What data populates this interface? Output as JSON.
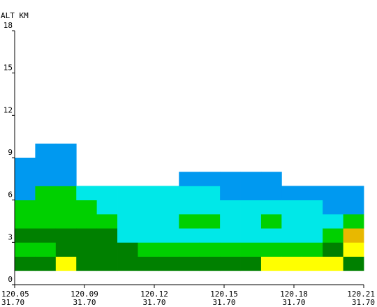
{
  "chart_data": {
    "type": "heatmap",
    "title": "",
    "ylabel": "ALT KM",
    "xlabel": "",
    "ylim": [
      0,
      18
    ],
    "y_ticks": [
      "0",
      "3",
      "6",
      "9",
      "12",
      "15",
      "18"
    ],
    "x_ticks": [
      {
        "lon": "120.05",
        "lat": "31.70"
      },
      {
        "lon": "120.09",
        "lat": "31.70"
      },
      {
        "lon": "120.12",
        "lat": "31.70"
      },
      {
        "lon": "120.15",
        "lat": "31.70"
      },
      {
        "lon": "120.18",
        "lat": "31.70"
      },
      {
        "lon": "120.21",
        "lat": "31.70"
      }
    ],
    "columns": 17,
    "row_height_km": 1,
    "legend": [],
    "cells": [
      {
        "col": 0,
        "y0": 1,
        "y1": 2,
        "color": "#008000"
      },
      {
        "col": 0,
        "y0": 2,
        "y1": 3,
        "color": "#00d000"
      },
      {
        "col": 0,
        "y0": 3,
        "y1": 4,
        "color": "#008000"
      },
      {
        "col": 0,
        "y0": 4,
        "y1": 6,
        "color": "#00d000"
      },
      {
        "col": 0,
        "y0": 6,
        "y1": 9,
        "color": "#0099f0"
      },
      {
        "col": 1,
        "y0": 1,
        "y1": 2,
        "color": "#008000"
      },
      {
        "col": 1,
        "y0": 2,
        "y1": 3,
        "color": "#00d000"
      },
      {
        "col": 1,
        "y0": 3,
        "y1": 4,
        "color": "#008000"
      },
      {
        "col": 1,
        "y0": 4,
        "y1": 7,
        "color": "#00d000"
      },
      {
        "col": 1,
        "y0": 7,
        "y1": 10,
        "color": "#0099f0"
      },
      {
        "col": 2,
        "y0": 1,
        "y1": 2,
        "color": "#ffff00"
      },
      {
        "col": 2,
        "y0": 2,
        "y1": 4,
        "color": "#008000"
      },
      {
        "col": 2,
        "y0": 4,
        "y1": 7,
        "color": "#00d000"
      },
      {
        "col": 2,
        "y0": 7,
        "y1": 10,
        "color": "#0099f0"
      },
      {
        "col": 3,
        "y0": 1,
        "y1": 4,
        "color": "#008000"
      },
      {
        "col": 3,
        "y0": 4,
        "y1": 6,
        "color": "#00d000"
      },
      {
        "col": 3,
        "y0": 6,
        "y1": 7,
        "color": "#00e8e8"
      },
      {
        "col": 4,
        "y0": 1,
        "y1": 4,
        "color": "#008000"
      },
      {
        "col": 4,
        "y0": 4,
        "y1": 5,
        "color": "#00d000"
      },
      {
        "col": 4,
        "y0": 5,
        "y1": 7,
        "color": "#00e8e8"
      },
      {
        "col": 5,
        "y0": 1,
        "y1": 3,
        "color": "#008000"
      },
      {
        "col": 5,
        "y0": 3,
        "y1": 7,
        "color": "#00e8e8"
      },
      {
        "col": 6,
        "y0": 1,
        "y1": 2,
        "color": "#008000"
      },
      {
        "col": 6,
        "y0": 2,
        "y1": 3,
        "color": "#00d000"
      },
      {
        "col": 6,
        "y0": 3,
        "y1": 7,
        "color": "#00e8e8"
      },
      {
        "col": 7,
        "y0": 1,
        "y1": 2,
        "color": "#008000"
      },
      {
        "col": 7,
        "y0": 2,
        "y1": 3,
        "color": "#00d000"
      },
      {
        "col": 7,
        "y0": 3,
        "y1": 7,
        "color": "#00e8e8"
      },
      {
        "col": 8,
        "y0": 1,
        "y1": 2,
        "color": "#008000"
      },
      {
        "col": 8,
        "y0": 2,
        "y1": 3,
        "color": "#00d000"
      },
      {
        "col": 8,
        "y0": 3,
        "y1": 4,
        "color": "#00e8e8"
      },
      {
        "col": 8,
        "y0": 4,
        "y1": 5,
        "color": "#00d000"
      },
      {
        "col": 8,
        "y0": 5,
        "y1": 7,
        "color": "#00e8e8"
      },
      {
        "col": 8,
        "y0": 7,
        "y1": 8,
        "color": "#0099f0"
      },
      {
        "col": 9,
        "y0": 1,
        "y1": 2,
        "color": "#008000"
      },
      {
        "col": 9,
        "y0": 2,
        "y1": 3,
        "color": "#00d000"
      },
      {
        "col": 9,
        "y0": 3,
        "y1": 4,
        "color": "#00e8e8"
      },
      {
        "col": 9,
        "y0": 4,
        "y1": 5,
        "color": "#00d000"
      },
      {
        "col": 9,
        "y0": 5,
        "y1": 7,
        "color": "#00e8e8"
      },
      {
        "col": 9,
        "y0": 7,
        "y1": 8,
        "color": "#0099f0"
      },
      {
        "col": 10,
        "y0": 1,
        "y1": 2,
        "color": "#008000"
      },
      {
        "col": 10,
        "y0": 2,
        "y1": 3,
        "color": "#00d000"
      },
      {
        "col": 10,
        "y0": 3,
        "y1": 6,
        "color": "#00e8e8"
      },
      {
        "col": 10,
        "y0": 6,
        "y1": 8,
        "color": "#0099f0"
      },
      {
        "col": 11,
        "y0": 1,
        "y1": 2,
        "color": "#008000"
      },
      {
        "col": 11,
        "y0": 2,
        "y1": 3,
        "color": "#00d000"
      },
      {
        "col": 11,
        "y0": 3,
        "y1": 6,
        "color": "#00e8e8"
      },
      {
        "col": 11,
        "y0": 6,
        "y1": 8,
        "color": "#0099f0"
      },
      {
        "col": 12,
        "y0": 1,
        "y1": 2,
        "color": "#ffff00"
      },
      {
        "col": 12,
        "y0": 2,
        "y1": 3,
        "color": "#00d000"
      },
      {
        "col": 12,
        "y0": 3,
        "y1": 4,
        "color": "#00e8e8"
      },
      {
        "col": 12,
        "y0": 4,
        "y1": 5,
        "color": "#00d000"
      },
      {
        "col": 12,
        "y0": 5,
        "y1": 6,
        "color": "#00e8e8"
      },
      {
        "col": 12,
        "y0": 6,
        "y1": 8,
        "color": "#0099f0"
      },
      {
        "col": 13,
        "y0": 1,
        "y1": 2,
        "color": "#ffff00"
      },
      {
        "col": 13,
        "y0": 2,
        "y1": 3,
        "color": "#00d000"
      },
      {
        "col": 13,
        "y0": 3,
        "y1": 6,
        "color": "#00e8e8"
      },
      {
        "col": 13,
        "y0": 6,
        "y1": 7,
        "color": "#0099f0"
      },
      {
        "col": 14,
        "y0": 1,
        "y1": 2,
        "color": "#ffff00"
      },
      {
        "col": 14,
        "y0": 2,
        "y1": 3,
        "color": "#00d000"
      },
      {
        "col": 14,
        "y0": 3,
        "y1": 6,
        "color": "#00e8e8"
      },
      {
        "col": 14,
        "y0": 6,
        "y1": 7,
        "color": "#0099f0"
      },
      {
        "col": 15,
        "y0": 1,
        "y1": 2,
        "color": "#ffff00"
      },
      {
        "col": 15,
        "y0": 2,
        "y1": 3,
        "color": "#008000"
      },
      {
        "col": 15,
        "y0": 3,
        "y1": 4,
        "color": "#00d000"
      },
      {
        "col": 15,
        "y0": 4,
        "y1": 5,
        "color": "#00e8e8"
      },
      {
        "col": 15,
        "y0": 5,
        "y1": 7,
        "color": "#0099f0"
      },
      {
        "col": 16,
        "y0": 1,
        "y1": 2,
        "color": "#008000"
      },
      {
        "col": 16,
        "y0": 2,
        "y1": 3,
        "color": "#ffff00"
      },
      {
        "col": 16,
        "y0": 3,
        "y1": 4,
        "color": "#e8b800"
      },
      {
        "col": 16,
        "y0": 4,
        "y1": 5,
        "color": "#00d000"
      },
      {
        "col": 16,
        "y0": 5,
        "y1": 7,
        "color": "#0099f0"
      }
    ]
  }
}
